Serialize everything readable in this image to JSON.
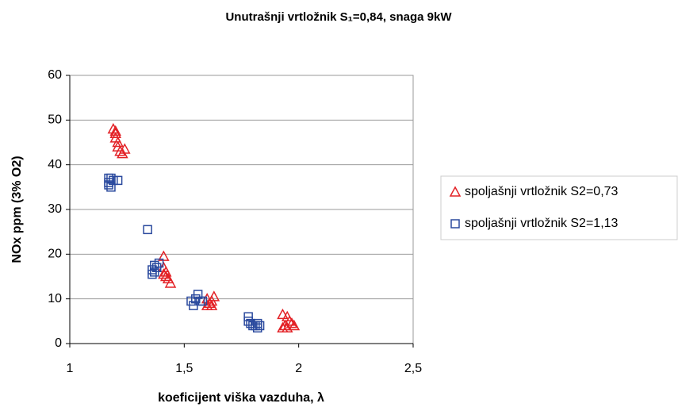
{
  "chart_data": {
    "type": "scatter",
    "title": "Unutrašnji vrtložnik S₁=0,84, snaga 9kW",
    "xlabel": "koeficijent viška vazduha,  λ",
    "ylabel": "NOx ppm (3% O2)",
    "xlim": [
      1,
      2.5
    ],
    "ylim": [
      0,
      60
    ],
    "xticks": [
      1,
      {
        "value": 1.5,
        "label": "1,5"
      },
      2,
      {
        "value": 2.5,
        "label": "2,5"
      }
    ],
    "yticks": [
      0,
      10,
      20,
      30,
      40,
      50,
      60
    ],
    "grid": true,
    "legend": "right",
    "series": [
      {
        "name": "spoljašnji vrtložnik S2=0,73",
        "color": "#e32227",
        "marker": "triangle",
        "x": [
          1.19,
          1.2,
          1.2,
          1.21,
          1.21,
          1.22,
          1.23,
          1.24,
          1.2,
          1.41,
          1.41,
          1.42,
          1.42,
          1.43,
          1.44,
          1.41,
          1.6,
          1.61,
          1.62,
          1.63,
          1.6,
          1.62,
          1.93,
          1.95,
          1.94,
          1.96,
          1.97,
          1.98,
          1.93,
          1.95
        ],
        "values": [
          48,
          47,
          46,
          45,
          44,
          43,
          42.5,
          43.5,
          47.5,
          19.5,
          17,
          16,
          15,
          14.5,
          13.5,
          15.5,
          10,
          9,
          8.5,
          10.5,
          8.5,
          9.5,
          6.5,
          6,
          4,
          5,
          4.5,
          4,
          3.5,
          3.5
        ]
      },
      {
        "name": "spoljašnji vrtložnik S2=1,13",
        "color": "#2b4a9e",
        "marker": "square",
        "x": [
          1.17,
          1.17,
          1.18,
          1.17,
          1.18,
          1.19,
          1.21,
          1.34,
          1.36,
          1.36,
          1.37,
          1.38,
          1.39,
          1.37,
          1.53,
          1.54,
          1.55,
          1.56,
          1.57,
          1.58,
          1.78,
          1.78,
          1.79,
          1.8,
          1.81,
          1.82,
          1.83,
          1.82
        ],
        "values": [
          37,
          36,
          35,
          35.5,
          37,
          36.5,
          36.5,
          25.5,
          16.5,
          15.5,
          16,
          17,
          18,
          17.5,
          9.5,
          8.5,
          10,
          11,
          9.5,
          9.5,
          6,
          5,
          4.5,
          4,
          4,
          4.5,
          4,
          3.5
        ]
      }
    ]
  }
}
